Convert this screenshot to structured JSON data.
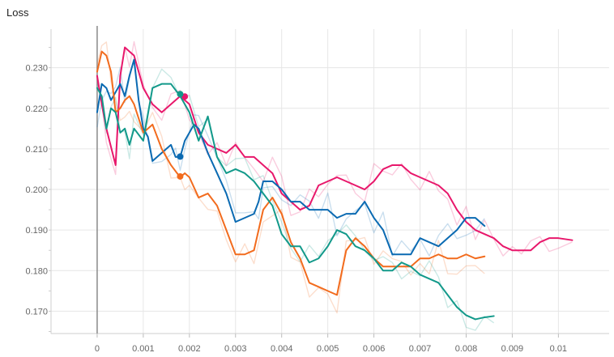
{
  "chart_data": {
    "type": "line",
    "title": "Loss",
    "xlabel": "",
    "ylabel": "",
    "xlim": [
      -0.001,
      0.0111
    ],
    "ylim": [
      0.1645,
      0.2395
    ],
    "x_ticks": [
      0,
      0.001,
      0.002,
      0.003,
      0.004,
      0.005,
      0.006,
      0.007,
      0.008,
      0.009,
      0.01
    ],
    "x_tick_labels": [
      "0",
      "0.001",
      "0.002",
      "0.003",
      "0.004",
      "0.005",
      "0.006",
      "0.007",
      "0.008",
      "0.009",
      "0.01"
    ],
    "y_ticks": [
      0.17,
      0.18,
      0.19,
      0.2,
      0.21,
      0.22,
      0.23
    ],
    "y_tick_labels": [
      "0.170",
      "0.180",
      "0.190",
      "0.200",
      "0.210",
      "0.220",
      "0.230"
    ],
    "grid": true,
    "vertical_marker_x": 0,
    "series": [
      {
        "color": "#e8176b",
        "values": [
          [
            0.0,
            0.228
          ],
          [
            0.0001,
            0.221
          ],
          [
            0.0002,
            0.215
          ],
          [
            0.0004,
            0.206
          ],
          [
            0.0005,
            0.228
          ],
          [
            0.0006,
            0.235
          ],
          [
            0.0007,
            0.234
          ],
          [
            0.0008,
            0.233
          ],
          [
            0.001,
            0.225
          ],
          [
            0.0012,
            0.221
          ],
          [
            0.0014,
            0.219
          ],
          [
            0.0016,
            0.221
          ],
          [
            0.0018,
            0.223
          ],
          [
            0.002,
            0.221
          ],
          [
            0.0022,
            0.214
          ],
          [
            0.0024,
            0.211
          ],
          [
            0.0026,
            0.21
          ],
          [
            0.0028,
            0.209
          ],
          [
            0.003,
            0.211
          ],
          [
            0.0032,
            0.208
          ],
          [
            0.0034,
            0.208
          ],
          [
            0.0036,
            0.206
          ],
          [
            0.0038,
            0.204
          ],
          [
            0.004,
            0.199
          ],
          [
            0.0042,
            0.197
          ],
          [
            0.0044,
            0.195
          ],
          [
            0.0046,
            0.196
          ],
          [
            0.0048,
            0.201
          ],
          [
            0.005,
            0.202
          ],
          [
            0.0052,
            0.203
          ],
          [
            0.0054,
            0.202
          ],
          [
            0.0056,
            0.201
          ],
          [
            0.0058,
            0.2
          ],
          [
            0.006,
            0.202
          ],
          [
            0.0062,
            0.205
          ],
          [
            0.0064,
            0.206
          ],
          [
            0.0066,
            0.206
          ],
          [
            0.0068,
            0.204
          ],
          [
            0.007,
            0.203
          ],
          [
            0.0072,
            0.202
          ],
          [
            0.0074,
            0.201
          ],
          [
            0.0076,
            0.199
          ],
          [
            0.0078,
            0.195
          ],
          [
            0.008,
            0.192
          ],
          [
            0.0082,
            0.19
          ],
          [
            0.0084,
            0.189
          ],
          [
            0.0086,
            0.188
          ],
          [
            0.0088,
            0.186
          ],
          [
            0.009,
            0.185
          ],
          [
            0.0092,
            0.185
          ],
          [
            0.0094,
            0.185
          ],
          [
            0.0096,
            0.187
          ],
          [
            0.0098,
            0.188
          ],
          [
            0.01,
            0.188
          ],
          [
            0.0103,
            0.1875
          ]
        ],
        "marker": [
          0.0019,
          0.2229
        ]
      },
      {
        "color": "#0a6ab2",
        "values": [
          [
            0.0,
            0.219
          ],
          [
            0.0001,
            0.226
          ],
          [
            0.0002,
            0.225
          ],
          [
            0.0003,
            0.222
          ],
          [
            0.0004,
            0.224
          ],
          [
            0.0005,
            0.226
          ],
          [
            0.0006,
            0.223
          ],
          [
            0.0007,
            0.228
          ],
          [
            0.0008,
            0.232
          ],
          [
            0.0009,
            0.222
          ],
          [
            0.001,
            0.215
          ],
          [
            0.0011,
            0.213
          ],
          [
            0.0012,
            0.207
          ],
          [
            0.0014,
            0.209
          ],
          [
            0.0016,
            0.211
          ],
          [
            0.0017,
            0.208
          ],
          [
            0.0018,
            0.208
          ],
          [
            0.0019,
            0.212
          ],
          [
            0.0021,
            0.216
          ],
          [
            0.0022,
            0.215
          ],
          [
            0.0024,
            0.209
          ],
          [
            0.0026,
            0.204
          ],
          [
            0.0028,
            0.199
          ],
          [
            0.003,
            0.192
          ],
          [
            0.0032,
            0.193
          ],
          [
            0.0034,
            0.194
          ],
          [
            0.0035,
            0.197
          ],
          [
            0.0036,
            0.202
          ],
          [
            0.0038,
            0.202
          ],
          [
            0.004,
            0.2
          ],
          [
            0.0042,
            0.197
          ],
          [
            0.0044,
            0.197
          ],
          [
            0.0046,
            0.195
          ],
          [
            0.0048,
            0.195
          ],
          [
            0.005,
            0.195
          ],
          [
            0.0052,
            0.193
          ],
          [
            0.0054,
            0.194
          ],
          [
            0.0056,
            0.194
          ],
          [
            0.0058,
            0.197
          ],
          [
            0.006,
            0.193
          ],
          [
            0.0062,
            0.19
          ],
          [
            0.0064,
            0.184
          ],
          [
            0.0066,
            0.184
          ],
          [
            0.0068,
            0.184
          ],
          [
            0.007,
            0.188
          ],
          [
            0.0072,
            0.187
          ],
          [
            0.0074,
            0.186
          ],
          [
            0.0076,
            0.188
          ],
          [
            0.0078,
            0.19
          ],
          [
            0.008,
            0.193
          ],
          [
            0.0082,
            0.193
          ],
          [
            0.0084,
            0.191
          ]
        ],
        "marker": [
          0.0018,
          0.2081
        ]
      },
      {
        "color": "#f26b1d",
        "values": [
          [
            0.0,
            0.229
          ],
          [
            0.0001,
            0.234
          ],
          [
            0.0002,
            0.233
          ],
          [
            0.0003,
            0.229
          ],
          [
            0.0004,
            0.219
          ],
          [
            0.0005,
            0.22
          ],
          [
            0.0006,
            0.222
          ],
          [
            0.0007,
            0.223
          ],
          [
            0.0008,
            0.221
          ],
          [
            0.001,
            0.214
          ],
          [
            0.0012,
            0.216
          ],
          [
            0.0014,
            0.21
          ],
          [
            0.0016,
            0.206
          ],
          [
            0.0018,
            0.203
          ],
          [
            0.0019,
            0.204
          ],
          [
            0.002,
            0.203
          ],
          [
            0.0022,
            0.198
          ],
          [
            0.0024,
            0.199
          ],
          [
            0.0026,
            0.196
          ],
          [
            0.0028,
            0.19
          ],
          [
            0.003,
            0.184
          ],
          [
            0.0032,
            0.184
          ],
          [
            0.0034,
            0.185
          ],
          [
            0.0036,
            0.195
          ],
          [
            0.0038,
            0.198
          ],
          [
            0.004,
            0.194
          ],
          [
            0.0042,
            0.187
          ],
          [
            0.0044,
            0.183
          ],
          [
            0.0046,
            0.177
          ],
          [
            0.0048,
            0.176
          ],
          [
            0.005,
            0.175
          ],
          [
            0.0052,
            0.174
          ],
          [
            0.0054,
            0.185
          ],
          [
            0.0056,
            0.188
          ],
          [
            0.0058,
            0.186
          ],
          [
            0.006,
            0.183
          ],
          [
            0.0062,
            0.181
          ],
          [
            0.0064,
            0.181
          ],
          [
            0.0066,
            0.181
          ],
          [
            0.0068,
            0.181
          ],
          [
            0.007,
            0.183
          ],
          [
            0.0072,
            0.183
          ],
          [
            0.0074,
            0.184
          ],
          [
            0.0076,
            0.183
          ],
          [
            0.0078,
            0.183
          ],
          [
            0.008,
            0.184
          ],
          [
            0.0082,
            0.183
          ],
          [
            0.0084,
            0.1835
          ]
        ],
        "marker": [
          0.0018,
          0.2032
        ]
      },
      {
        "color": "#12998a",
        "values": [
          [
            0.0,
            0.225
          ],
          [
            0.0001,
            0.223
          ],
          [
            0.0002,
            0.215
          ],
          [
            0.0003,
            0.22
          ],
          [
            0.0004,
            0.219
          ],
          [
            0.0005,
            0.214
          ],
          [
            0.0006,
            0.215
          ],
          [
            0.0007,
            0.211
          ],
          [
            0.0008,
            0.215
          ],
          [
            0.001,
            0.212
          ],
          [
            0.0012,
            0.225
          ],
          [
            0.0014,
            0.226
          ],
          [
            0.0016,
            0.226
          ],
          [
            0.0018,
            0.223
          ],
          [
            0.002,
            0.219
          ],
          [
            0.0022,
            0.212
          ],
          [
            0.0024,
            0.218
          ],
          [
            0.0026,
            0.208
          ],
          [
            0.0028,
            0.204
          ],
          [
            0.003,
            0.205
          ],
          [
            0.0032,
            0.204
          ],
          [
            0.0034,
            0.202
          ],
          [
            0.0036,
            0.199
          ],
          [
            0.0038,
            0.196
          ],
          [
            0.004,
            0.189
          ],
          [
            0.0042,
            0.186
          ],
          [
            0.0044,
            0.186
          ],
          [
            0.0046,
            0.182
          ],
          [
            0.0048,
            0.183
          ],
          [
            0.005,
            0.186
          ],
          [
            0.0052,
            0.19
          ],
          [
            0.0054,
            0.189
          ],
          [
            0.0056,
            0.186
          ],
          [
            0.0058,
            0.185
          ],
          [
            0.006,
            0.183
          ],
          [
            0.0062,
            0.18
          ],
          [
            0.0064,
            0.18
          ],
          [
            0.0066,
            0.182
          ],
          [
            0.0068,
            0.181
          ],
          [
            0.007,
            0.179
          ],
          [
            0.0072,
            0.178
          ],
          [
            0.0074,
            0.177
          ],
          [
            0.0076,
            0.174
          ],
          [
            0.0078,
            0.171
          ],
          [
            0.008,
            0.169
          ],
          [
            0.0082,
            0.168
          ],
          [
            0.0084,
            0.1685
          ],
          [
            0.0086,
            0.1688
          ]
        ],
        "marker": [
          0.0018,
          0.2235
        ]
      }
    ]
  }
}
